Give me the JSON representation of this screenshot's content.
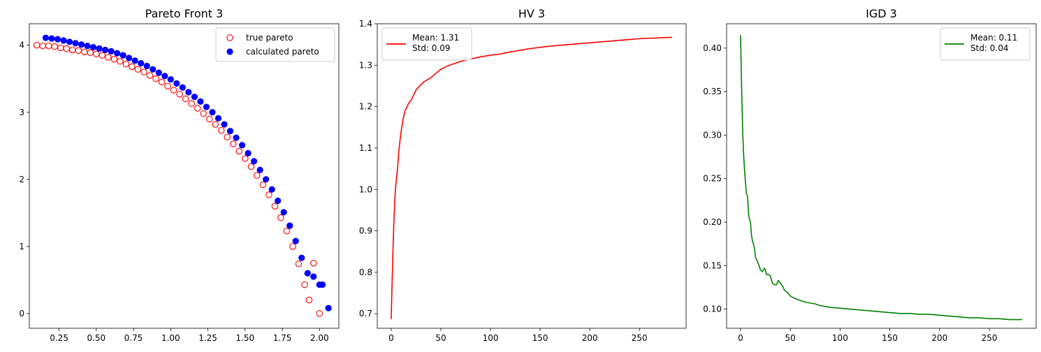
{
  "chart_data": [
    {
      "type": "scatter",
      "title": "Pareto Front 3",
      "xlabel": "",
      "ylabel": "",
      "xlim": [
        0.05,
        2.13
      ],
      "ylim": [
        -0.22,
        4.32
      ],
      "xticks": [
        0.25,
        0.5,
        0.75,
        1.0,
        1.25,
        1.5,
        1.75,
        2.0
      ],
      "xtick_labels": [
        "0.25",
        "0.50",
        "0.75",
        "1.00",
        "1.25",
        "1.50",
        "1.75",
        "2.00"
      ],
      "yticks": [
        0,
        1,
        2,
        3,
        4
      ],
      "ytick_labels": [
        "0",
        "1",
        "2",
        "3",
        "4"
      ],
      "legend_position": "upper right",
      "series": [
        {
          "name": "true pareto",
          "marker": "hollow-circle",
          "color": "#ff0000",
          "points": [
            [
              0.1,
              4.0
            ],
            [
              0.14,
              3.99
            ],
            [
              0.18,
              3.99
            ],
            [
              0.22,
              3.98
            ],
            [
              0.26,
              3.96
            ],
            [
              0.3,
              3.95
            ],
            [
              0.34,
              3.93
            ],
            [
              0.38,
              3.92
            ],
            [
              0.42,
              3.9
            ],
            [
              0.46,
              3.89
            ],
            [
              0.5,
              3.87
            ],
            [
              0.54,
              3.85
            ],
            [
              0.58,
              3.82
            ],
            [
              0.62,
              3.79
            ],
            [
              0.66,
              3.76
            ],
            [
              0.7,
              3.72
            ],
            [
              0.74,
              3.68
            ],
            [
              0.78,
              3.64
            ],
            [
              0.82,
              3.6
            ],
            [
              0.86,
              3.55
            ],
            [
              0.9,
              3.5
            ],
            [
              0.94,
              3.45
            ],
            [
              0.98,
              3.39
            ],
            [
              1.02,
              3.33
            ],
            [
              1.06,
              3.27
            ],
            [
              1.1,
              3.2
            ],
            [
              1.14,
              3.13
            ],
            [
              1.18,
              3.06
            ],
            [
              1.22,
              2.98
            ],
            [
              1.26,
              2.9
            ],
            [
              1.3,
              2.82
            ],
            [
              1.34,
              2.73
            ],
            [
              1.38,
              2.63
            ],
            [
              1.42,
              2.53
            ],
            [
              1.46,
              2.42
            ],
            [
              1.5,
              2.31
            ],
            [
              1.54,
              2.19
            ],
            [
              1.58,
              2.06
            ],
            [
              1.62,
              1.92
            ],
            [
              1.66,
              1.77
            ],
            [
              1.7,
              1.6
            ],
            [
              1.74,
              1.43
            ],
            [
              1.78,
              1.23
            ],
            [
              1.82,
              1.0
            ],
            [
              1.86,
              0.74
            ],
            [
              1.9,
              0.43
            ],
            [
              1.93,
              0.2
            ],
            [
              1.96,
              0.75
            ],
            [
              2.0,
              0.0
            ]
          ]
        },
        {
          "name": "calculated pareto",
          "marker": "filled-circle",
          "color": "#0000ff",
          "points": [
            [
              0.16,
              4.11
            ],
            [
              0.2,
              4.1
            ],
            [
              0.24,
              4.09
            ],
            [
              0.28,
              4.07
            ],
            [
              0.32,
              4.05
            ],
            [
              0.36,
              4.03
            ],
            [
              0.4,
              4.01
            ],
            [
              0.44,
              3.99
            ],
            [
              0.48,
              3.97
            ],
            [
              0.52,
              3.95
            ],
            [
              0.56,
              3.93
            ],
            [
              0.6,
              3.91
            ],
            [
              0.64,
              3.88
            ],
            [
              0.68,
              3.85
            ],
            [
              0.72,
              3.81
            ],
            [
              0.76,
              3.77
            ],
            [
              0.8,
              3.73
            ],
            [
              0.84,
              3.69
            ],
            [
              0.88,
              3.64
            ],
            [
              0.92,
              3.59
            ],
            [
              0.96,
              3.54
            ],
            [
              1.0,
              3.49
            ],
            [
              1.04,
              3.43
            ],
            [
              1.08,
              3.37
            ],
            [
              1.12,
              3.3
            ],
            [
              1.16,
              3.23
            ],
            [
              1.2,
              3.16
            ],
            [
              1.24,
              3.08
            ],
            [
              1.28,
              3.0
            ],
            [
              1.32,
              2.91
            ],
            [
              1.36,
              2.82
            ],
            [
              1.4,
              2.72
            ],
            [
              1.44,
              2.62
            ],
            [
              1.48,
              2.51
            ],
            [
              1.52,
              2.39
            ],
            [
              1.56,
              2.27
            ],
            [
              1.6,
              2.14
            ],
            [
              1.64,
              2.0
            ],
            [
              1.68,
              1.85
            ],
            [
              1.72,
              1.68
            ],
            [
              1.76,
              1.51
            ],
            [
              1.8,
              1.31
            ],
            [
              1.84,
              1.08
            ],
            [
              1.88,
              0.83
            ],
            [
              1.92,
              0.6
            ],
            [
              1.96,
              0.55
            ],
            [
              2.0,
              0.43
            ],
            [
              2.02,
              0.43
            ],
            [
              2.06,
              0.08
            ]
          ]
        }
      ]
    },
    {
      "type": "line",
      "title": "HV 3",
      "xlabel": "",
      "ylabel": "",
      "xlim": [
        -14,
        297
      ],
      "ylim": [
        0.665,
        1.4
      ],
      "xticks": [
        0,
        50,
        100,
        150,
        200,
        250
      ],
      "xtick_labels": [
        "0",
        "50",
        "100",
        "150",
        "200",
        "250"
      ],
      "yticks": [
        0.7,
        0.8,
        0.9,
        1.0,
        1.1,
        1.2,
        1.3,
        1.4
      ],
      "ytick_labels": [
        "0.7",
        "0.8",
        "0.9",
        "1.0",
        "1.1",
        "1.2",
        "1.3",
        "1.4"
      ],
      "legend_position": "upper left",
      "series": [
        {
          "name": "Mean: 1.31\nStd: 0.09",
          "color": "#ff0000",
          "x": [
            0,
            1,
            2,
            3,
            4,
            5,
            6,
            7,
            8,
            9,
            10,
            12,
            14,
            16,
            18,
            20,
            22,
            25,
            28,
            30,
            33,
            36,
            40,
            45,
            50,
            55,
            60,
            70,
            80,
            90,
            100,
            110,
            120,
            130,
            140,
            150,
            160,
            170,
            180,
            190,
            200,
            210,
            220,
            230,
            240,
            250,
            260,
            270,
            280,
            283
          ],
          "y": [
            0.687,
            0.78,
            0.87,
            0.94,
            0.99,
            1.02,
            1.04,
            1.07,
            1.1,
            1.12,
            1.14,
            1.17,
            1.19,
            1.2,
            1.21,
            1.215,
            1.225,
            1.24,
            1.248,
            1.253,
            1.26,
            1.264,
            1.27,
            1.28,
            1.29,
            1.296,
            1.301,
            1.309,
            1.315,
            1.32,
            1.324,
            1.327,
            1.332,
            1.336,
            1.34,
            1.343,
            1.346,
            1.348,
            1.35,
            1.352,
            1.354,
            1.356,
            1.358,
            1.36,
            1.362,
            1.364,
            1.365,
            1.366,
            1.367,
            1.367
          ]
        }
      ]
    },
    {
      "type": "line",
      "title": "IGD 3",
      "xlabel": "",
      "ylabel": "",
      "xlim": [
        -14,
        297
      ],
      "ylim": [
        0.078,
        0.428
      ],
      "xticks": [
        0,
        50,
        100,
        150,
        200,
        250
      ],
      "xtick_labels": [
        "0",
        "50",
        "100",
        "150",
        "200",
        "250"
      ],
      "yticks": [
        0.1,
        0.15,
        0.2,
        0.25,
        0.3,
        0.35,
        0.4
      ],
      "ytick_labels": [
        "0.10",
        "0.15",
        "0.20",
        "0.25",
        "0.30",
        "0.35",
        "0.40"
      ],
      "legend_position": "upper right",
      "series": [
        {
          "name": "Mean: 0.11\nStd: 0.04",
          "color": "#008000",
          "x": [
            0,
            1,
            2,
            3,
            4,
            5,
            6,
            7,
            8,
            9,
            10,
            11,
            12,
            13,
            14,
            15,
            16,
            18,
            20,
            22,
            24,
            25,
            26,
            28,
            30,
            32,
            34,
            36,
            38,
            40,
            42,
            44,
            46,
            48,
            50,
            55,
            60,
            65,
            70,
            75,
            80,
            90,
            100,
            110,
            120,
            130,
            140,
            150,
            160,
            170,
            180,
            190,
            200,
            210,
            220,
            230,
            240,
            250,
            260,
            270,
            283
          ],
          "y": [
            0.415,
            0.36,
            0.31,
            0.28,
            0.26,
            0.245,
            0.232,
            0.23,
            0.21,
            0.203,
            0.2,
            0.185,
            0.178,
            0.175,
            0.17,
            0.16,
            0.157,
            0.152,
            0.145,
            0.143,
            0.147,
            0.145,
            0.14,
            0.14,
            0.138,
            0.13,
            0.128,
            0.128,
            0.133,
            0.13,
            0.127,
            0.122,
            0.12,
            0.118,
            0.115,
            0.112,
            0.11,
            0.108,
            0.107,
            0.106,
            0.104,
            0.102,
            0.101,
            0.1,
            0.099,
            0.098,
            0.097,
            0.096,
            0.095,
            0.095,
            0.094,
            0.094,
            0.093,
            0.092,
            0.091,
            0.09,
            0.09,
            0.089,
            0.089,
            0.088,
            0.088
          ]
        }
      ]
    }
  ]
}
